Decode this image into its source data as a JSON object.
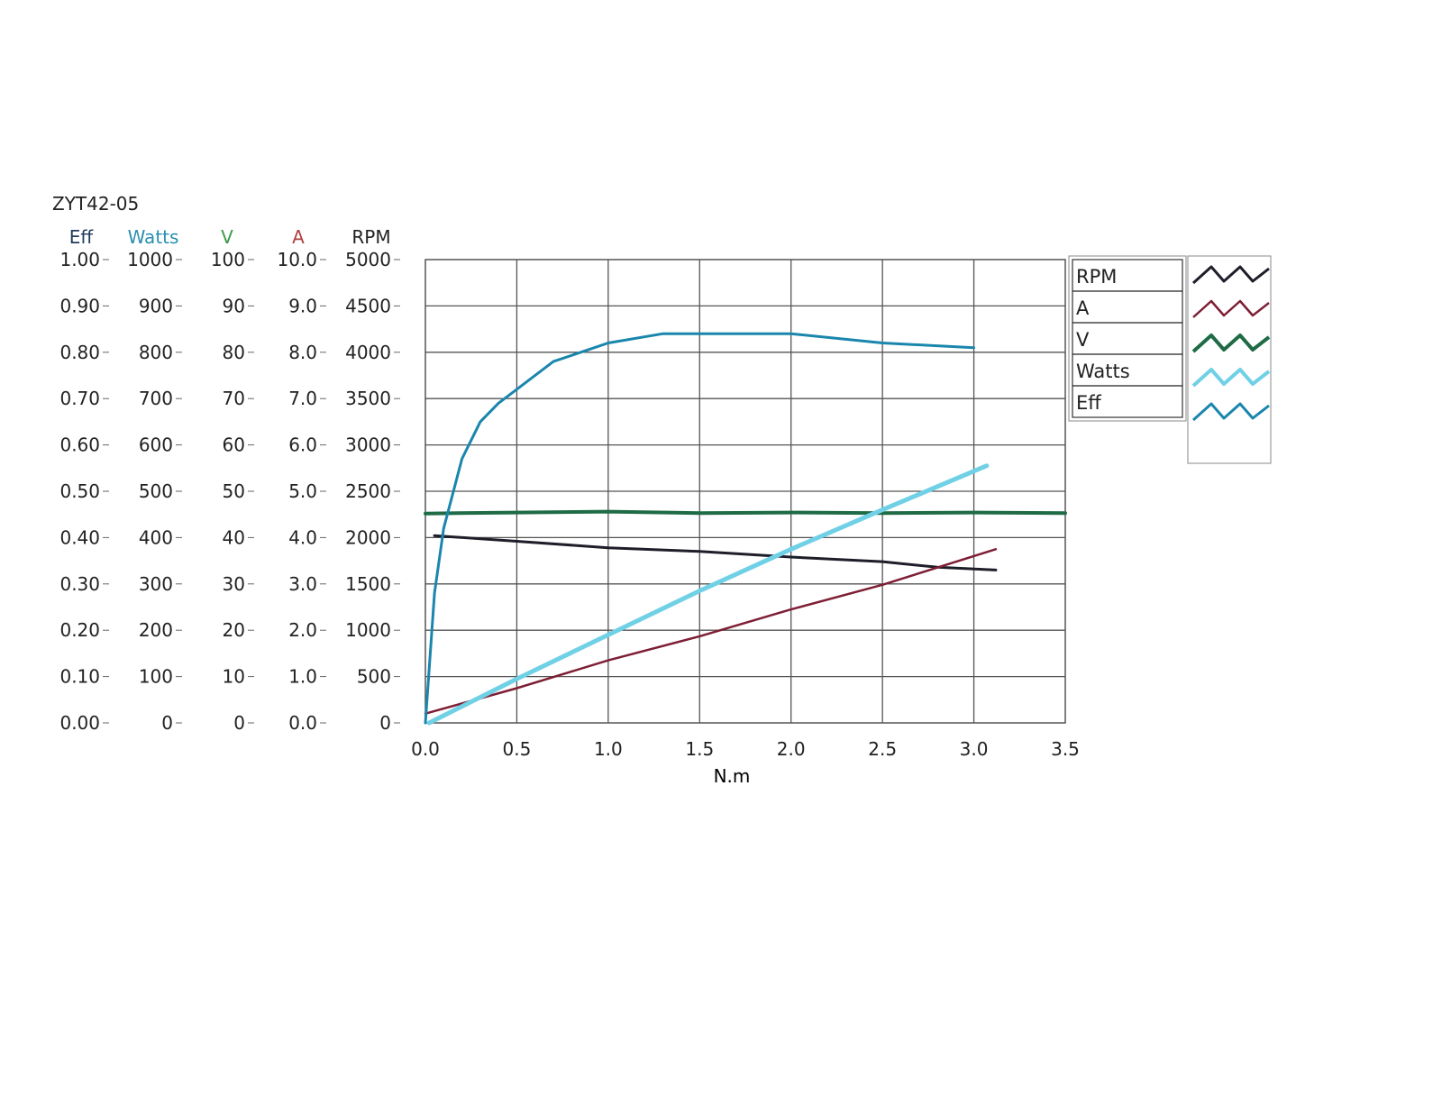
{
  "chart_data": {
    "type": "line",
    "title": "ZYT42-05",
    "xlabel": "N.m",
    "xlim": [
      0,
      3.5
    ],
    "x_ticks": [
      "0.0",
      "0.5",
      "1.0",
      "1.5",
      "2.0",
      "2.5",
      "3.0",
      "3.5"
    ],
    "grid": true,
    "legend_position": "right",
    "axes": [
      {
        "id": "eff",
        "label": "Eff",
        "color": "#1f3b5a",
        "range": [
          0,
          1.0
        ],
        "ticks": [
          "1.00",
          "0.90",
          "0.80",
          "0.70",
          "0.60",
          "0.50",
          "0.40",
          "0.30",
          "0.20",
          "0.10",
          "0.00"
        ]
      },
      {
        "id": "watts",
        "label": "Watts",
        "color": "#2a8fb0",
        "range": [
          0,
          1000
        ],
        "ticks": [
          "1000",
          "900",
          "800",
          "700",
          "600",
          "500",
          "400",
          "300",
          "200",
          "100",
          "0"
        ]
      },
      {
        "id": "v",
        "label": "V",
        "color": "#3a9a4a",
        "range": [
          0,
          100
        ],
        "ticks": [
          "100",
          "90",
          "80",
          "70",
          "60",
          "50",
          "40",
          "30",
          "20",
          "10",
          "0"
        ]
      },
      {
        "id": "a",
        "label": "A",
        "color": "#b04040",
        "range": [
          0,
          10.0
        ],
        "ticks": [
          "10.0",
          "9.0",
          "8.0",
          "7.0",
          "6.0",
          "5.0",
          "4.0",
          "3.0",
          "2.0",
          "1.0",
          "0.0"
        ]
      },
      {
        "id": "rpm",
        "label": "RPM",
        "color": "#222222",
        "range": [
          0,
          5000
        ],
        "ticks": [
          "5000",
          "4500",
          "4000",
          "3500",
          "3000",
          "2500",
          "2000",
          "1500",
          "1000",
          "500",
          "0"
        ]
      }
    ],
    "series": [
      {
        "name": "RPM",
        "axis": "rpm",
        "color": "#1e1e2a",
        "width": 3,
        "x": [
          0.05,
          0.5,
          1.0,
          1.5,
          2.0,
          2.5,
          2.8,
          3.12
        ],
        "y": [
          2020,
          1960,
          1890,
          1850,
          1790,
          1740,
          1680,
          1650
        ]
      },
      {
        "name": "A",
        "axis": "a",
        "color": "#7e1e35",
        "width": 2.5,
        "x": [
          0.0,
          0.5,
          1.0,
          1.5,
          2.0,
          2.5,
          3.12
        ],
        "y": [
          0.2,
          0.75,
          1.35,
          1.87,
          2.45,
          2.98,
          3.75
        ]
      },
      {
        "name": "V",
        "axis": "v",
        "color": "#1e6b45",
        "width": 4,
        "x": [
          0.0,
          0.5,
          1.0,
          1.5,
          2.0,
          2.5,
          3.0,
          3.5
        ],
        "y": [
          45.2,
          45.4,
          45.6,
          45.3,
          45.4,
          45.3,
          45.4,
          45.3
        ]
      },
      {
        "name": "Watts",
        "axis": "watts",
        "color": "#6fd0e6",
        "width": 5,
        "x": [
          0.02,
          0.5,
          1.0,
          1.5,
          2.0,
          2.5,
          3.07
        ],
        "y": [
          0,
          95,
          190,
          285,
          375,
          460,
          555
        ]
      },
      {
        "name": "Eff",
        "axis": "eff",
        "color": "#1a86ad",
        "width": 3,
        "x": [
          0.0,
          0.05,
          0.1,
          0.2,
          0.3,
          0.4,
          0.5,
          0.7,
          1.0,
          1.3,
          1.6,
          2.0,
          2.5,
          3.0
        ],
        "y": [
          0.0,
          0.28,
          0.42,
          0.57,
          0.65,
          0.69,
          0.72,
          0.78,
          0.82,
          0.84,
          0.84,
          0.84,
          0.82,
          0.81
        ]
      }
    ],
    "legend": [
      "RPM",
      "A",
      "V",
      "Watts",
      "Eff"
    ]
  }
}
